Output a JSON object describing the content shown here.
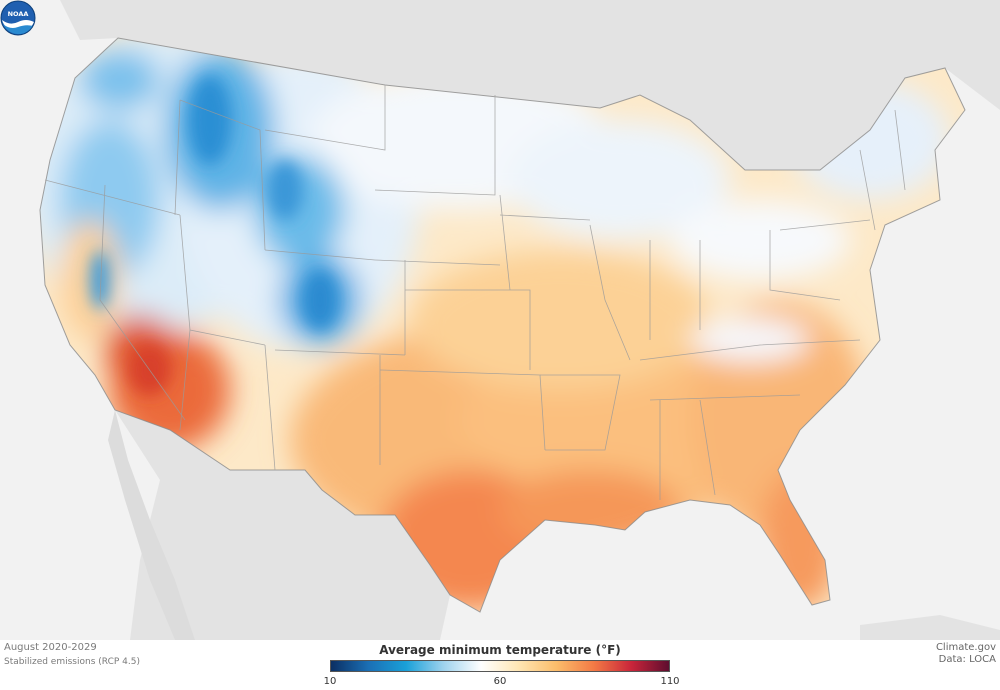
{
  "map": {
    "period": "August 2020-2029",
    "scenario": "Stabilized emissions (RCP 4.5)"
  },
  "legend": {
    "title": "Average minimum temperature (°F)",
    "min_label": "10",
    "mid_label": "60",
    "max_label": "110",
    "colors": [
      "#0b2f63",
      "#1b6fb5",
      "#1aa0d8",
      "#9fd3ee",
      "#ffffff",
      "#ffe6b3",
      "#fbbd6b",
      "#f37a45",
      "#c9253a",
      "#5e0d2f"
    ]
  },
  "credits": {
    "source": "Climate.gov",
    "data": "Data: LOCA"
  },
  "logo": {
    "text": "NOAA",
    "icon": "noaa-logo-icon"
  }
}
